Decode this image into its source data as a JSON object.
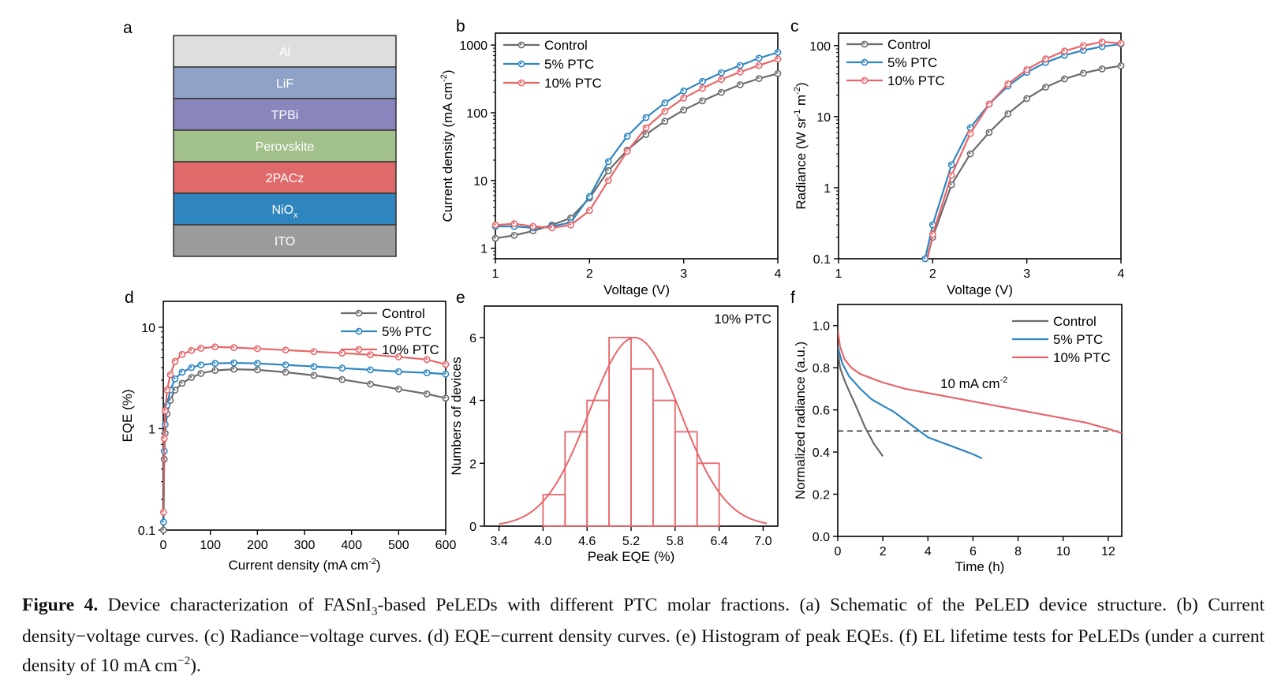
{
  "colors": {
    "control": "#6b6b6b",
    "ptc5": "#2e86c1",
    "ptc10": "#e8666a",
    "axis": "#000000"
  },
  "panels": {
    "a": "a",
    "b": "b",
    "c": "c",
    "d": "d",
    "e": "e",
    "f": "f"
  },
  "caption": {
    "fig_label": "Figure 4.",
    "part1": " Device characterization of FASnI",
    "sub1": "3",
    "part2": "-based PeLEDs with different PTC molar fractions. (a) Schematic of the PeLED device structure. (b) Current density−voltage curves. (c) Radiance−voltage curves. (d) EQE−current density curves. (e) Histogram of peak EQEs. (f) EL lifetime tests for PeLEDs (under a current density of 10 mA cm",
    "sup1": "−2",
    "part3": ")."
  },
  "chart_data": [
    {
      "panel": "a",
      "type": "diagram",
      "layers": [
        {
          "label": "Al",
          "color": "#dedede"
        },
        {
          "label": "LiF",
          "color": "#8fa3c9"
        },
        {
          "label": "TPBi",
          "color": "#8a86bd"
        },
        {
          "label": "Perovskite",
          "color": "#a3c18c"
        },
        {
          "label": "2PACz",
          "color": "#e06a6a"
        },
        {
          "label": "NiO",
          "sub": "x",
          "color": "#2f85bd"
        },
        {
          "label": "ITO",
          "color": "#9c9c9c"
        }
      ]
    },
    {
      "panel": "b",
      "type": "line",
      "xlabel": "Voltage (V)",
      "ylabel": "Current density (mA cm",
      "ylabel_sup": "-2",
      "ylabel_end": ")",
      "xscale": "linear",
      "yscale": "log",
      "xlim": [
        1,
        4
      ],
      "ylim": [
        0.7,
        1500
      ],
      "xticks": [
        1,
        2,
        3,
        4
      ],
      "xticklabels": [
        "1",
        "2",
        "3",
        "4"
      ],
      "yticks": [
        1,
        10,
        100,
        1000
      ],
      "yticklabels": [
        "1",
        "10",
        "100",
        "1000"
      ],
      "legend": "top-left",
      "x": [
        1.0,
        1.2,
        1.4,
        1.6,
        1.8,
        2.0,
        2.2,
        2.4,
        2.6,
        2.8,
        3.0,
        3.2,
        3.4,
        3.6,
        3.8,
        4.0
      ],
      "series": [
        {
          "name": "Control",
          "key": "control",
          "values": [
            1.4,
            1.55,
            1.8,
            2.2,
            2.8,
            5.5,
            14,
            28,
            48,
            75,
            110,
            150,
            200,
            260,
            320,
            380
          ]
        },
        {
          "name": "5% PTC",
          "key": "ptc5",
          "values": [
            2.1,
            2.1,
            2.0,
            2.1,
            2.4,
            5.8,
            19,
            45,
            85,
            140,
            210,
            290,
            390,
            500,
            640,
            780
          ]
        },
        {
          "name": "10% PTC",
          "key": "ptc10",
          "values": [
            2.2,
            2.3,
            2.1,
            2.0,
            2.2,
            3.6,
            10,
            27,
            60,
            105,
            165,
            230,
            310,
            400,
            500,
            620
          ]
        }
      ]
    },
    {
      "panel": "c",
      "type": "line",
      "xlabel": "Voltage (V)",
      "ylabel": "Radiance (W sr",
      "ylabel_sup1": "-1",
      "ylabel_mid": " m",
      "ylabel_sup2": "-2",
      "ylabel_end": ")",
      "xscale": "linear",
      "yscale": "log",
      "xlim": [
        1,
        4
      ],
      "ylim": [
        0.1,
        150
      ],
      "xticks": [
        1,
        2,
        3,
        4
      ],
      "xticklabels": [
        "1",
        "2",
        "3",
        "4"
      ],
      "yticks": [
        0.1,
        1,
        10,
        100
      ],
      "yticklabels": [
        "0.1",
        "1",
        "10",
        "100"
      ],
      "legend": "top-left",
      "x": [
        1.92,
        2.0,
        2.2,
        2.4,
        2.6,
        2.8,
        3.0,
        3.2,
        3.4,
        3.6,
        3.8,
        4.0
      ],
      "series": [
        {
          "name": "Control",
          "key": "control",
          "values": [
            0.08,
            0.2,
            1.1,
            3.0,
            6.0,
            11,
            18,
            26,
            34,
            41,
            47,
            52
          ]
        },
        {
          "name": "5% PTC",
          "key": "ptc5",
          "values": [
            0.1,
            0.3,
            2.1,
            7.0,
            15,
            27,
            42,
            58,
            73,
            86,
            97,
            105
          ]
        },
        {
          "name": "10% PTC",
          "key": "ptc10",
          "values": [
            0.07,
            0.22,
            1.5,
            5.8,
            15,
            29,
            46,
            65,
            84,
            100,
            113,
            108
          ]
        }
      ]
    },
    {
      "panel": "d",
      "type": "line",
      "xlabel": "Current density (mA cm",
      "xlabel_sup": "-2",
      "xlabel_end": ")",
      "ylabel": "EQE (%)",
      "xscale": "linear",
      "yscale": "log",
      "xlim": [
        0,
        600
      ],
      "ylim": [
        0.1,
        18
      ],
      "xticks": [
        0,
        100,
        200,
        300,
        400,
        500,
        600
      ],
      "xticklabels": [
        "0",
        "100",
        "200",
        "300",
        "400",
        "500",
        "600"
      ],
      "yticks": [
        0.1,
        1,
        10
      ],
      "yticklabels": [
        "0.1",
        "1",
        "10"
      ],
      "legend": "top-right",
      "series": [
        {
          "name": "Control",
          "key": "control",
          "x": [
            0.5,
            2,
            4,
            8,
            15,
            25,
            40,
            60,
            80,
            110,
            150,
            200,
            260,
            320,
            380,
            440,
            500,
            560,
            600
          ],
          "values": [
            0.1,
            0.5,
            0.9,
            1.4,
            1.9,
            2.4,
            2.8,
            3.2,
            3.5,
            3.75,
            3.85,
            3.8,
            3.6,
            3.35,
            3.05,
            2.75,
            2.45,
            2.2,
            2.0
          ]
        },
        {
          "name": "5% PTC",
          "key": "ptc5",
          "x": [
            0.5,
            2,
            4,
            8,
            15,
            25,
            40,
            60,
            80,
            110,
            150,
            200,
            260,
            320,
            380,
            440,
            500,
            560,
            600
          ],
          "values": [
            0.12,
            0.6,
            1.1,
            1.7,
            2.4,
            3.1,
            3.6,
            4.0,
            4.25,
            4.4,
            4.45,
            4.4,
            4.25,
            4.1,
            3.95,
            3.8,
            3.65,
            3.55,
            3.45
          ]
        },
        {
          "name": "10% PTC",
          "key": "ptc10",
          "x": [
            0.5,
            2,
            4,
            8,
            15,
            25,
            40,
            60,
            80,
            110,
            150,
            200,
            260,
            320,
            380,
            440,
            500,
            560,
            600
          ],
          "values": [
            0.15,
            0.8,
            1.5,
            2.4,
            3.4,
            4.6,
            5.4,
            5.9,
            6.2,
            6.4,
            6.3,
            6.15,
            5.95,
            5.75,
            5.55,
            5.35,
            5.1,
            4.8,
            4.3
          ]
        }
      ]
    },
    {
      "panel": "e",
      "type": "bar",
      "xlabel": "Peak EQE (%)",
      "ylabel": "Numbers of devices",
      "annotation": "10% PTC",
      "xlim": [
        3.2,
        7.2
      ],
      "ylim": [
        0,
        7
      ],
      "xticks": [
        3.4,
        4.0,
        4.6,
        5.2,
        5.8,
        6.4,
        7.0
      ],
      "xticklabels": [
        "3.4",
        "4.0",
        "4.6",
        "5.2",
        "5.8",
        "6.4",
        "7.0"
      ],
      "yticks": [
        0,
        2,
        4,
        6
      ],
      "yticklabels": [
        "0",
        "2",
        "4",
        "6"
      ],
      "bin_width": 0.3,
      "bin_starts": [
        4.0,
        4.3,
        4.6,
        4.9,
        5.2,
        5.5,
        5.8,
        6.1
      ],
      "values": [
        1,
        3,
        4,
        6,
        5,
        4,
        3,
        2
      ],
      "fit": {
        "type": "gaussian",
        "mean": 5.25,
        "sigma": 0.62,
        "peak": 6.0
      }
    },
    {
      "panel": "f",
      "type": "line",
      "xlabel": "Time (h)",
      "ylabel": "Normalized radiance (a.u.)",
      "annotation": "10 mA cm",
      "annotation_sup": "-2",
      "reference_line": 0.5,
      "xscale": "linear",
      "yscale": "linear",
      "xlim": [
        0,
        12.6
      ],
      "ylim": [
        0,
        1.1
      ],
      "xticks": [
        0,
        2,
        4,
        6,
        8,
        10,
        12
      ],
      "xticklabels": [
        "0",
        "2",
        "4",
        "6",
        "8",
        "10",
        "12"
      ],
      "yticks": [
        0,
        0.2,
        0.4,
        0.6,
        0.8,
        1.0
      ],
      "yticklabels": [
        "0.0",
        "0.2",
        "0.4",
        "0.6",
        "0.8",
        "1.0"
      ],
      "legend": "top-right",
      "series": [
        {
          "name": "Control",
          "key": "control",
          "x": [
            0,
            0.1,
            0.3,
            0.5,
            0.8,
            1.0,
            1.2,
            1.4,
            1.6,
            1.8,
            2.0
          ],
          "values": [
            0.88,
            0.8,
            0.74,
            0.69,
            0.62,
            0.57,
            0.52,
            0.48,
            0.44,
            0.41,
            0.38
          ]
        },
        {
          "name": "5% PTC",
          "key": "ptc5",
          "x": [
            0,
            0.2,
            0.5,
            1.0,
            1.5,
            2.0,
            2.5,
            3.0,
            3.5,
            4.0,
            4.5,
            5.0,
            5.5,
            6.0,
            6.4
          ],
          "values": [
            0.9,
            0.82,
            0.76,
            0.7,
            0.65,
            0.62,
            0.59,
            0.55,
            0.51,
            0.47,
            0.45,
            0.43,
            0.41,
            0.39,
            0.37
          ]
        },
        {
          "name": "10% PTC",
          "key": "ptc10",
          "x": [
            0,
            0.1,
            0.3,
            0.6,
            1.0,
            1.5,
            2.0,
            3.0,
            4.0,
            5.0,
            6.0,
            7.0,
            8.0,
            9.0,
            10.0,
            11.0,
            12.0,
            12.6
          ],
          "values": [
            0.98,
            0.9,
            0.84,
            0.8,
            0.77,
            0.75,
            0.73,
            0.7,
            0.68,
            0.66,
            0.64,
            0.62,
            0.6,
            0.58,
            0.56,
            0.54,
            0.51,
            0.49
          ]
        }
      ]
    }
  ]
}
